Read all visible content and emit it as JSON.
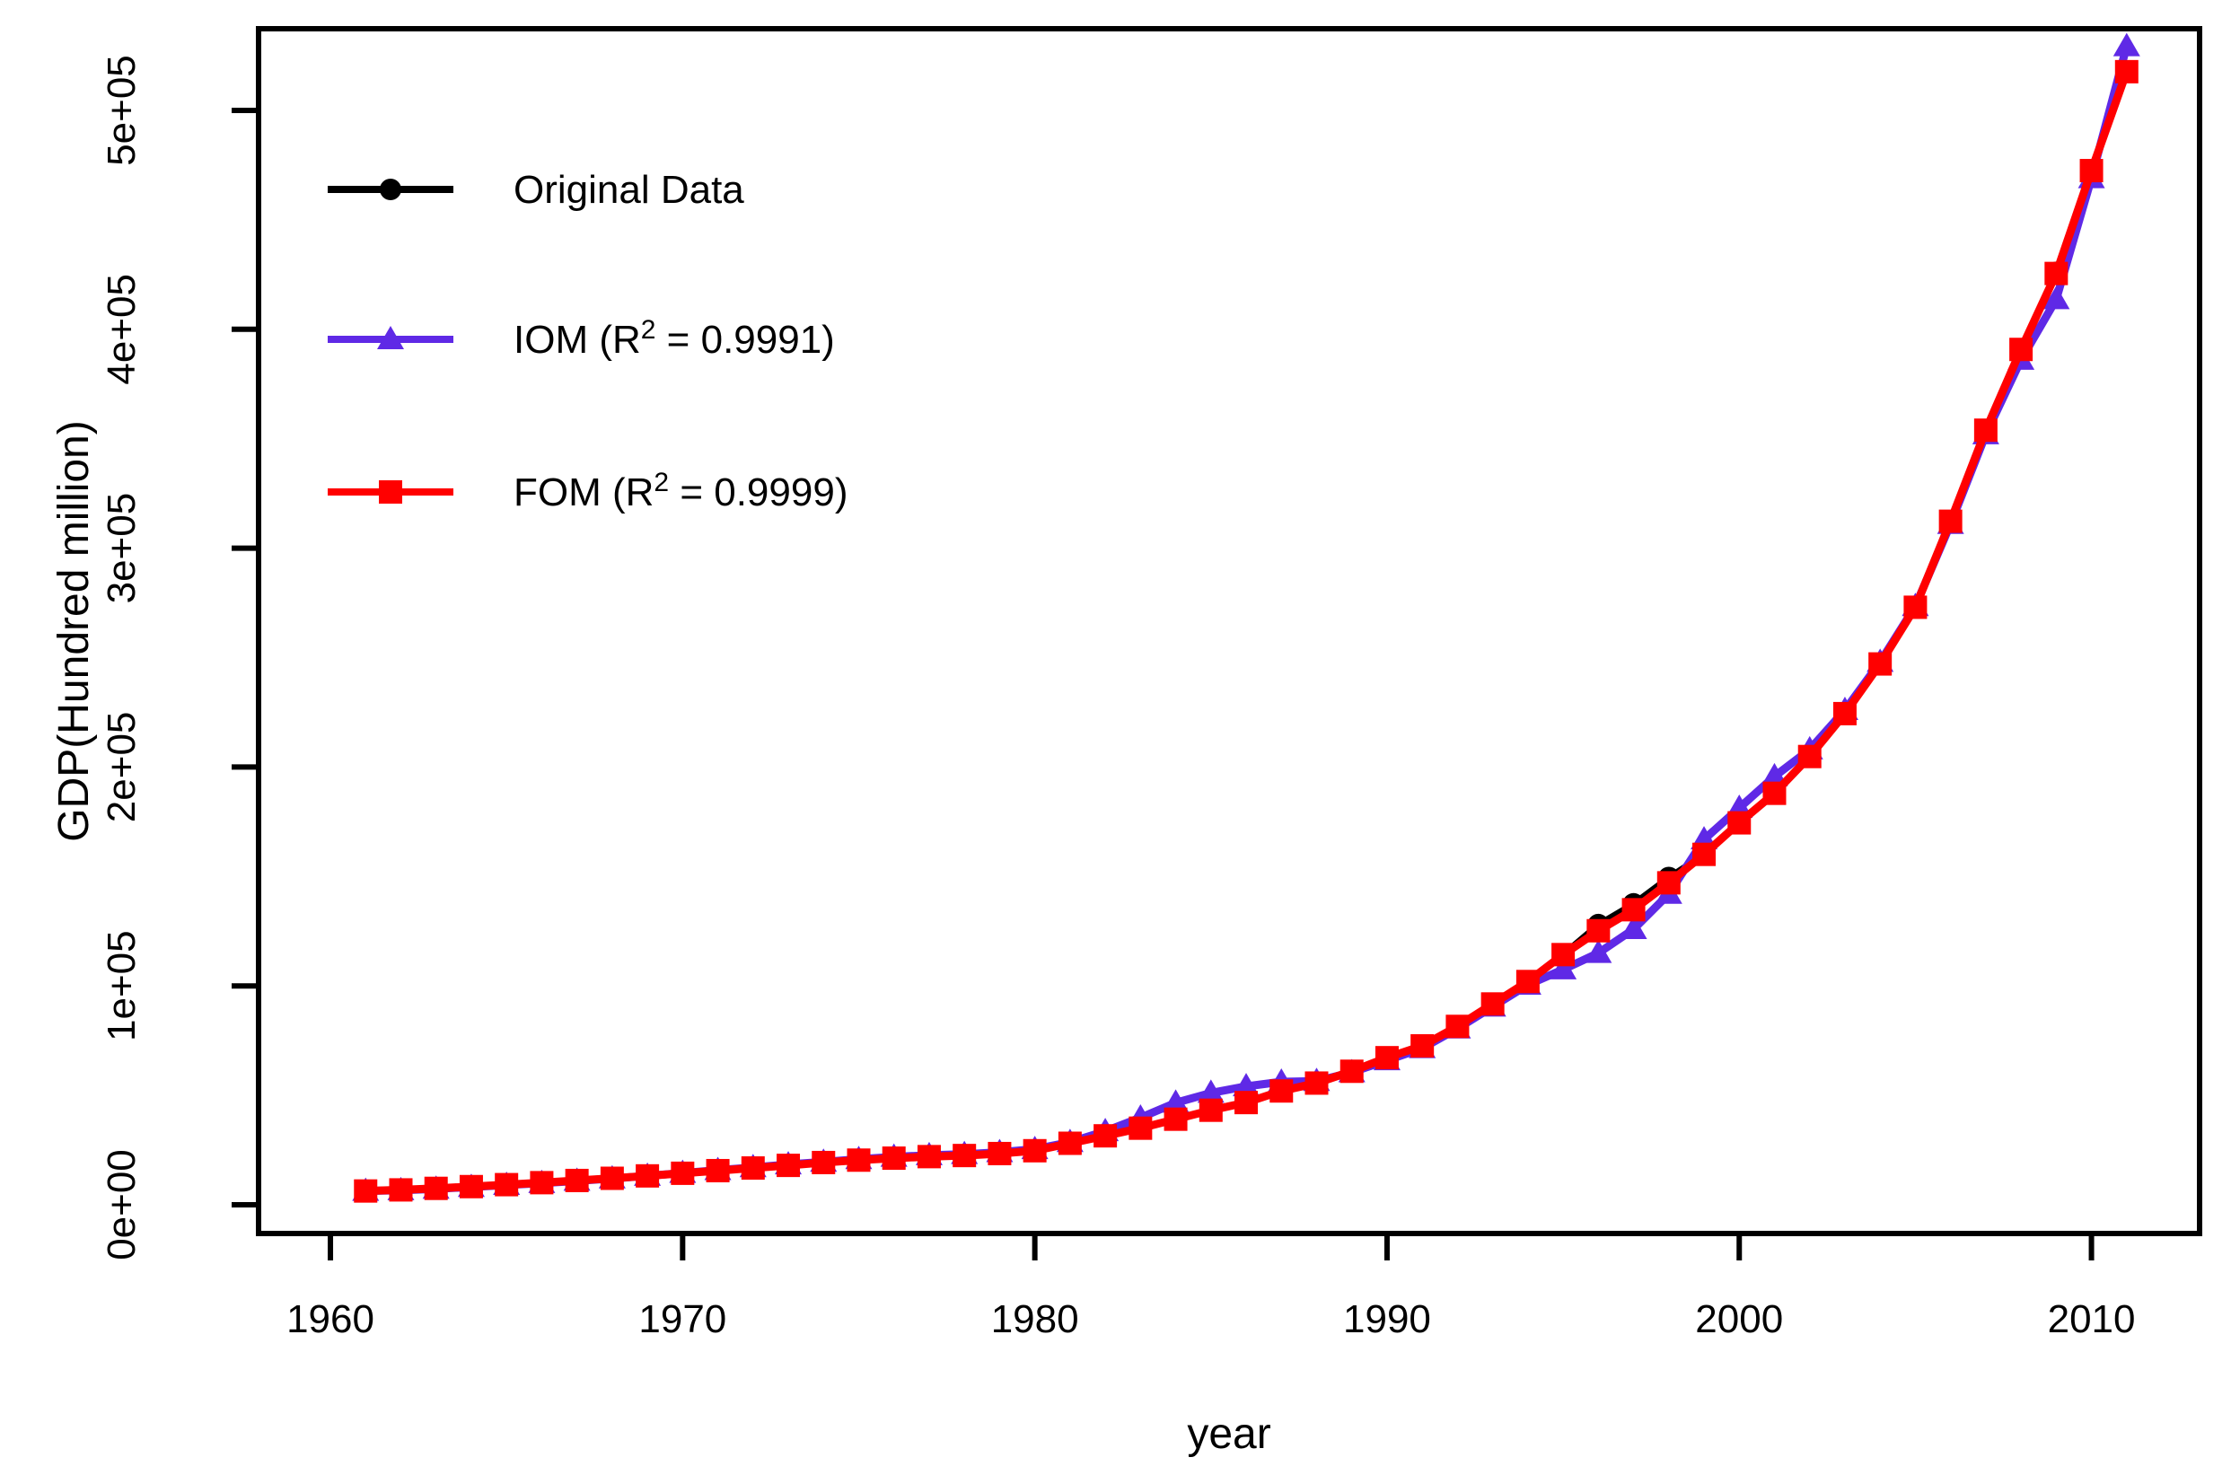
{
  "figure": {
    "background": "#ffffff",
    "axis_color": "#000000"
  },
  "chart_data": {
    "type": "line",
    "title": "",
    "xlabel": "year",
    "ylabel": "GDP(Hundred million)",
    "grid": false,
    "legend_position": "top-left-inside",
    "xlim": [
      1957.96,
      2013.07
    ],
    "ylim": [
      -13125,
      537325
    ],
    "x_ticks": [
      1960,
      1970,
      1980,
      1990,
      2000,
      2010
    ],
    "y_ticks": [
      {
        "value": 0,
        "label": "0e+00"
      },
      {
        "value": 100000,
        "label": "1e+05"
      },
      {
        "value": 200000,
        "label": "2e+05"
      },
      {
        "value": 300000,
        "label": "3e+05"
      },
      {
        "value": 400000,
        "label": "4e+05"
      },
      {
        "value": 500000,
        "label": "5e+05"
      }
    ],
    "x": [
      1961,
      1962,
      1963,
      1964,
      1965,
      1966,
      1967,
      1968,
      1969,
      1970,
      1971,
      1972,
      1973,
      1974,
      1975,
      1976,
      1977,
      1978,
      1979,
      1980,
      1981,
      1982,
      1983,
      1984,
      1985,
      1986,
      1987,
      1988,
      1989,
      1990,
      1991,
      1992,
      1993,
      1994,
      1995,
      1996,
      1997,
      1998,
      1999,
      2000,
      2001,
      2002,
      2003,
      2004,
      2005,
      2006,
      2007,
      2008,
      2009,
      2010,
      2011
    ],
    "series": [
      {
        "name": "Original Data",
        "color": "#000000",
        "marker": "circle",
        "line_width": 7,
        "values": [
          6300,
          6900,
          7600,
          8300,
          9200,
          10100,
          11000,
          12000,
          13100,
          14300,
          15500,
          16600,
          17900,
          19200,
          20300,
          21200,
          21900,
          22400,
          23400,
          24700,
          28200,
          31600,
          35000,
          39100,
          43200,
          46600,
          52100,
          55500,
          61000,
          67100,
          72600,
          81500,
          91800,
          102000,
          114300,
          128000,
          137500,
          149500,
          160100,
          174500,
          188200,
          204800,
          224400,
          247100,
          273000,
          312300,
          353900,
          390800,
          426000,
          472500,
          517700
        ]
      },
      {
        "name": "IOM",
        "r2": "0.9991",
        "color": "#5F29E6",
        "marker": "triangle-up",
        "line_width": 9,
        "values": [
          6300,
          6600,
          7300,
          8100,
          9000,
          9900,
          10900,
          12000,
          13200,
          14500,
          15800,
          17100,
          18400,
          19600,
          20800,
          21900,
          22600,
          23100,
          24000,
          25400,
          28600,
          33600,
          39800,
          46600,
          51100,
          54100,
          56200,
          56500,
          60500,
          66000,
          71500,
          80500,
          90500,
          100500,
          107500,
          115000,
          125900,
          142000,
          166900,
          181300,
          195700,
          208000,
          226000,
          248000,
          273500,
          311000,
          352000,
          386000,
          413700,
          469000,
          529300
        ]
      },
      {
        "name": "FOM",
        "r2": "0.9999",
        "color": "#FF0000",
        "marker": "square",
        "line_width": 9,
        "values": [
          6300,
          6800,
          7500,
          8300,
          9200,
          10100,
          11100,
          12100,
          13200,
          14400,
          15600,
          16800,
          18000,
          19300,
          20400,
          21300,
          22000,
          22500,
          23400,
          24700,
          28100,
          31500,
          35000,
          39100,
          43200,
          46700,
          52000,
          55600,
          61000,
          67200,
          72600,
          81500,
          91750,
          102000,
          114300,
          125200,
          134800,
          147100,
          160100,
          174500,
          188000,
          204800,
          224400,
          247100,
          273000,
          312300,
          353900,
          390800,
          425500,
          472500,
          517700
        ]
      }
    ],
    "legend": [
      {
        "pre": "Original Data",
        "sup": "",
        "post": ""
      },
      {
        "pre": "IOM (R",
        "sup": "2",
        "post": " = 0.9991)"
      },
      {
        "pre": "FOM (R",
        "sup": "2",
        "post": " = 0.9999)"
      }
    ]
  }
}
